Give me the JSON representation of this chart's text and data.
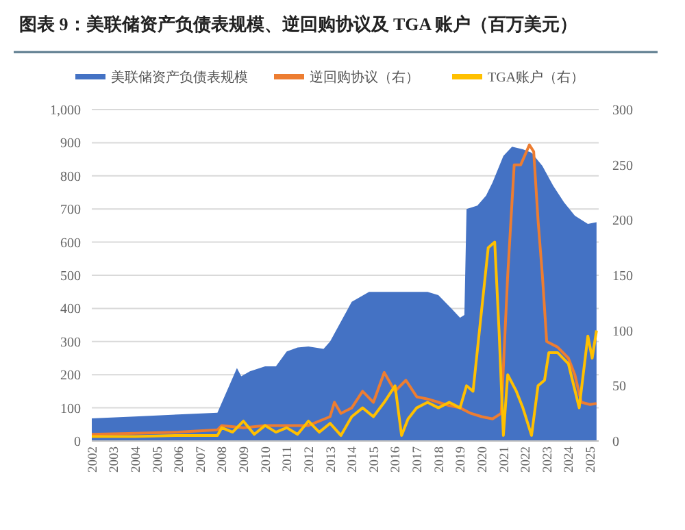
{
  "chart_data": {
    "type": "line",
    "title": "图表 9：美联储资产负债表规模、逆回购协议及 TGA 账户（百万美元）",
    "legend": "top",
    "grid": "y",
    "xlim": [
      2002,
      2025.4
    ],
    "xticks": [
      2002,
      2003,
      2004,
      2005,
      2006,
      2007,
      2008,
      2009,
      2010,
      2011,
      2012,
      2013,
      2014,
      2015,
      2016,
      2017,
      2018,
      2019,
      2020,
      2021,
      2022,
      2023,
      2024,
      2025
    ],
    "ylim": [
      0,
      1000
    ],
    "yticks": [
      0,
      100,
      200,
      300,
      400,
      500,
      600,
      700,
      800,
      900,
      {
        "value": 1000,
        "label": "1,000"
      }
    ],
    "y2lim": [
      0,
      300
    ],
    "y2ticks": [
      0,
      50,
      100,
      150,
      200,
      250,
      300
    ],
    "series": [
      {
        "name": "美联储资产负债表规模",
        "type": "area",
        "color": "#4472c4",
        "x": [
          2002,
          2004,
          2006,
          2007.8,
          2008.7,
          2008.9,
          2009.3,
          2010,
          2010.5,
          2011,
          2011.5,
          2012,
          2012.7,
          2013,
          2013.5,
          2014,
          2014.8,
          2015.5,
          2016.5,
          2017.5,
          2018,
          2018.6,
          2019,
          2019.2,
          2019.3,
          2019.8,
          2020.2,
          2020.5,
          2021,
          2021.4,
          2021.9,
          2022.3,
          2022.8,
          2023.3,
          2023.8,
          2024.3,
          2024.9,
          2025.3
        ],
        "values": [
          68,
          74,
          80,
          85,
          220,
          195,
          210,
          225,
          225,
          270,
          282,
          285,
          278,
          300,
          360,
          420,
          450,
          450,
          450,
          450,
          440,
          400,
          372,
          380,
          700,
          710,
          740,
          780,
          860,
          888,
          880,
          870,
          830,
          770,
          720,
          680,
          655,
          660
        ]
      },
      {
        "name": "逆回购协议（右）",
        "axis": "y2",
        "color": "#ed7d31",
        "x": [
          2002,
          2004,
          2006,
          2007.8,
          2008,
          2009,
          2010,
          2011,
          2012,
          2013,
          2013.2,
          2013.5,
          2014,
          2014.5,
          2015,
          2015.5,
          2016,
          2016.5,
          2017,
          2017.5,
          2018,
          2018.5,
          2019,
          2019.5,
          2020,
          2020.5,
          2020.9,
          2021.2,
          2021.5,
          2021.8,
          2022.2,
          2022.4,
          2022.6,
          2022.8,
          2023,
          2023.5,
          2024,
          2024.3,
          2024.6,
          2025,
          2025.3
        ],
        "values": [
          6,
          7,
          8,
          10,
          14,
          12,
          14,
          14,
          14,
          22,
          35,
          25,
          30,
          45,
          35,
          62,
          45,
          55,
          40,
          38,
          35,
          32,
          30,
          25,
          22,
          20,
          25,
          150,
          250,
          250,
          268,
          262,
          200,
          150,
          90,
          85,
          75,
          60,
          35,
          33,
          34
        ]
      },
      {
        "name": "TGA账户（右）",
        "axis": "y2",
        "color": "#ffc000",
        "x": [
          2002,
          2004,
          2006,
          2007.8,
          2008,
          2008.5,
          2009,
          2009.5,
          2010,
          2010.5,
          2011,
          2011.5,
          2012,
          2012.5,
          2013,
          2013.5,
          2014,
          2014.5,
          2015,
          2015.5,
          2016,
          2016.3,
          2016.6,
          2017,
          2017.5,
          2018,
          2018.5,
          2019,
          2019.3,
          2019.6,
          2020.3,
          2020.6,
          2020.8,
          2021,
          2021.2,
          2021.6,
          2021.9,
          2022.3,
          2022.6,
          2022.9,
          2023.1,
          2023.5,
          2024,
          2024.5,
          2024.9,
          2025.1,
          2025.3
        ],
        "values": [
          4,
          4,
          5,
          5,
          12,
          8,
          18,
          6,
          14,
          8,
          12,
          6,
          18,
          8,
          16,
          5,
          22,
          30,
          22,
          35,
          50,
          5,
          20,
          30,
          35,
          30,
          35,
          30,
          50,
          45,
          175,
          180,
          100,
          5,
          60,
          45,
          30,
          5,
          50,
          55,
          80,
          80,
          70,
          30,
          95,
          75,
          100
        ]
      }
    ]
  }
}
